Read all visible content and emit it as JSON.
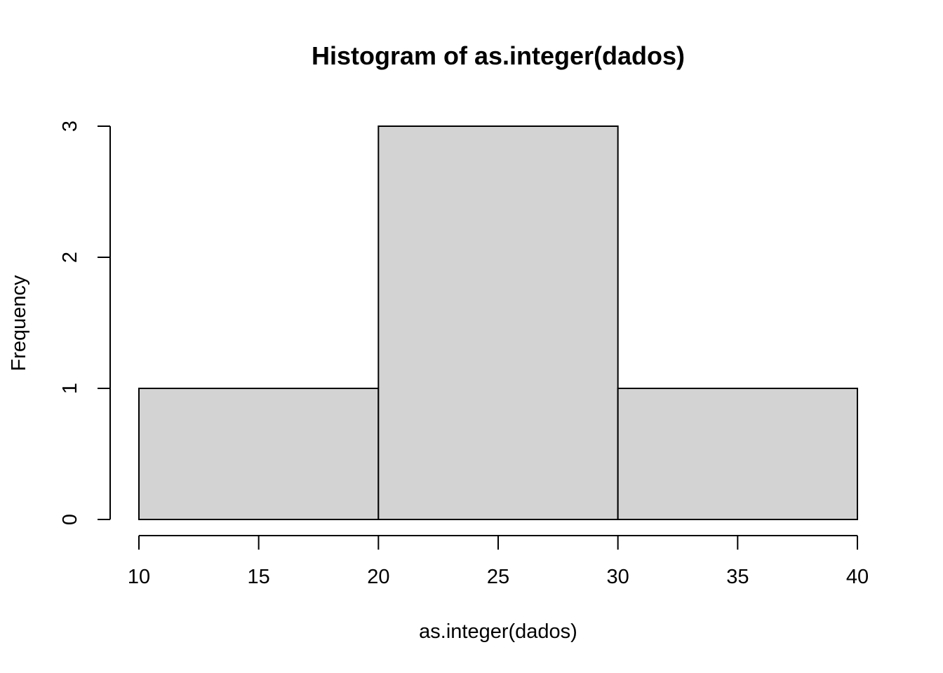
{
  "chart_data": {
    "type": "bar",
    "subtype": "histogram",
    "title": "Histogram of as.integer(dados)",
    "xlabel": "as.integer(dados)",
    "ylabel": "Frequency",
    "bins": [
      {
        "from": 10,
        "to": 20,
        "count": 1
      },
      {
        "from": 20,
        "to": 30,
        "count": 3
      },
      {
        "from": 30,
        "to": 40,
        "count": 1
      }
    ],
    "xlim": [
      10,
      40
    ],
    "ylim": [
      0,
      3
    ],
    "xticks": [
      10,
      15,
      20,
      25,
      30,
      35,
      40
    ],
    "yticks": [
      0,
      1,
      2,
      3
    ],
    "grid": false,
    "legend": "none",
    "bar_fill": "#d3d3d3",
    "bar_stroke": "#000000"
  }
}
